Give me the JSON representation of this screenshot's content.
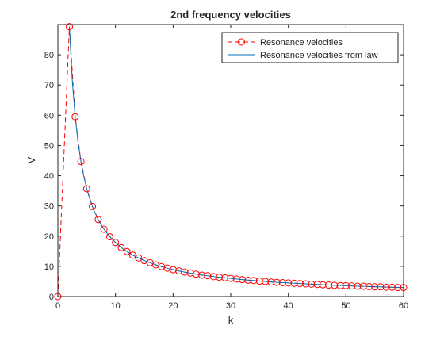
{
  "chart_data": {
    "type": "line",
    "title": "2nd frequency velocities",
    "xlabel": "k",
    "ylabel": "V",
    "xlim": [
      0,
      60
    ],
    "ylim": [
      0,
      90
    ],
    "xticks": [
      0,
      10,
      20,
      30,
      40,
      50,
      60
    ],
    "yticks": [
      0,
      10,
      20,
      30,
      40,
      50,
      60,
      70,
      80
    ],
    "grid": false,
    "legend_position": "top-right",
    "colors": {
      "measured": "#ff0000",
      "law": "#0072bd",
      "axes": "#262626"
    },
    "series": [
      {
        "name": "Resonance velocities",
        "style": "dashed-line-circle-markers",
        "x": [
          0,
          2,
          3,
          4,
          5,
          6,
          7,
          8,
          9,
          10,
          11,
          12,
          13,
          14,
          15,
          16,
          17,
          18,
          19,
          20,
          21,
          22,
          23,
          24,
          25,
          26,
          27,
          28,
          29,
          30,
          31,
          32,
          33,
          34,
          35,
          36,
          37,
          38,
          39,
          40,
          41,
          42,
          43,
          44,
          45,
          46,
          47,
          48,
          49,
          50,
          51,
          52,
          53,
          54,
          55,
          56,
          57,
          58,
          59,
          60
        ],
        "y": [
          0,
          89.3,
          59.5,
          44.7,
          35.7,
          29.8,
          25.5,
          22.3,
          19.8,
          17.9,
          16.2,
          14.9,
          13.7,
          12.8,
          11.9,
          11.2,
          10.5,
          9.9,
          9.4,
          8.9,
          8.5,
          8.1,
          7.8,
          7.4,
          7.1,
          6.9,
          6.6,
          6.4,
          6.2,
          6.0,
          5.8,
          5.6,
          5.4,
          5.3,
          5.1,
          5.0,
          4.8,
          4.7,
          4.6,
          4.5,
          4.4,
          4.3,
          4.2,
          4.1,
          4.0,
          3.9,
          3.8,
          3.7,
          3.6,
          3.6,
          3.5,
          3.4,
          3.4,
          3.3,
          3.2,
          3.2,
          3.1,
          3.1,
          3.0,
          3.0
        ]
      },
      {
        "name": "Resonance velocities from law",
        "style": "solid-line",
        "x": [
          2,
          2.5,
          3,
          3.5,
          4,
          4.5,
          5,
          5.5,
          6,
          6.5,
          7,
          7.5,
          8,
          9,
          10,
          11,
          12,
          13,
          14,
          15,
          16,
          17,
          18,
          19,
          20,
          22,
          24,
          26,
          28,
          30,
          32,
          34,
          36,
          38,
          40,
          42,
          44,
          46,
          48,
          50,
          52,
          54,
          56,
          58,
          60
        ],
        "y": [
          89.3,
          71.4,
          59.5,
          51.0,
          44.7,
          39.7,
          35.7,
          32.5,
          29.8,
          27.5,
          25.5,
          23.8,
          22.3,
          19.8,
          17.9,
          16.2,
          14.9,
          13.7,
          12.8,
          11.9,
          11.2,
          10.5,
          9.9,
          9.4,
          8.9,
          8.1,
          7.4,
          6.9,
          6.4,
          6.0,
          5.6,
          5.3,
          5.0,
          4.7,
          4.5,
          4.3,
          4.1,
          3.9,
          3.7,
          3.6,
          3.4,
          3.3,
          3.2,
          3.1,
          3.0
        ]
      }
    ]
  }
}
